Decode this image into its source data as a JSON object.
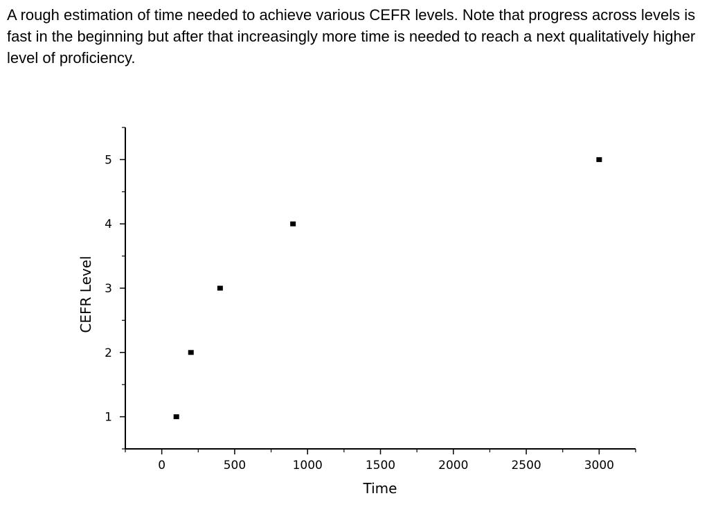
{
  "caption": "A rough estimation of time needed to achieve various CEFR levels. Note that progress across levels is fast in the beginning but after that increasingly more time is needed to reach a next qualitatively higher level of proficiency.",
  "chart_data": {
    "type": "scatter",
    "title": "",
    "xlabel": "Time",
    "ylabel": "CEFR Level",
    "xlim": [
      -250,
      3250
    ],
    "ylim": [
      0.5,
      5.5
    ],
    "xticks": [
      0,
      500,
      1000,
      1500,
      2000,
      2500,
      3000
    ],
    "xtick_labels": [
      "0",
      "500",
      "1000",
      "1500",
      "2000",
      "2500",
      "3000"
    ],
    "yticks": [
      1,
      2,
      3,
      4,
      5
    ],
    "ytick_labels": [
      "1",
      "2",
      "3",
      "4",
      "5"
    ],
    "grid": false,
    "legend": "none",
    "marker": "square",
    "marker_color": "#000000",
    "series": [
      {
        "x": [
          100,
          200,
          400,
          900,
          3000
        ],
        "y": [
          1,
          2,
          3,
          4,
          5
        ]
      }
    ]
  }
}
